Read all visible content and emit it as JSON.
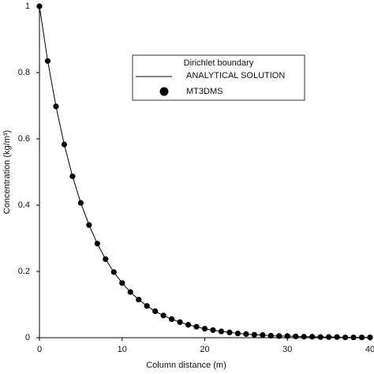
{
  "chart_data": {
    "type": "line",
    "xlabel": "Column distance (m)",
    "ylabel": "Concentration (kg/m³)",
    "legend_title": "Dirichlet boundary",
    "x": [
      0,
      1,
      2,
      3,
      4,
      5,
      6,
      7,
      8,
      9,
      10,
      11,
      12,
      13,
      14,
      15,
      16,
      17,
      18,
      19,
      20,
      21,
      22,
      23,
      24,
      25,
      26,
      27,
      28,
      29,
      30,
      31,
      32,
      33,
      34,
      35,
      36,
      37,
      38,
      39,
      40
    ],
    "series": [
      {
        "name": "ANALYTICAL SOLUTION",
        "color": "#000000",
        "style": "line",
        "values": [
          1,
          0.835,
          0.698,
          0.583,
          0.487,
          0.407,
          0.34,
          0.284,
          0.237,
          0.198,
          0.165,
          0.138,
          0.115,
          0.096,
          0.08,
          0.067,
          0.056,
          0.047,
          0.039,
          0.033,
          0.027,
          0.023,
          0.019,
          0.016,
          0.013,
          0.011,
          0.009,
          0.008,
          0.006,
          0.005,
          0.005,
          0.004,
          0.003,
          0.003,
          0.002,
          0.002,
          0.002,
          0.001,
          0.001,
          0.001,
          0.001
        ]
      },
      {
        "name": "MT3DMS",
        "color": "#000000",
        "style": "markers",
        "values": [
          1,
          0.835,
          0.698,
          0.583,
          0.487,
          0.407,
          0.34,
          0.284,
          0.237,
          0.198,
          0.165,
          0.138,
          0.115,
          0.096,
          0.08,
          0.067,
          0.056,
          0.047,
          0.039,
          0.033,
          0.027,
          0.023,
          0.019,
          0.016,
          0.013,
          0.011,
          0.009,
          0.008,
          0.006,
          0.005,
          0.005,
          0.004,
          0.003,
          0.003,
          0.002,
          0.002,
          0.002,
          0.001,
          0.001,
          0.001,
          0.001
        ]
      }
    ],
    "xlim": [
      0,
      40
    ],
    "xticks": [
      0,
      10,
      20,
      30,
      40
    ],
    "ylim": [
      0,
      1
    ],
    "yticks": [
      0,
      0.2,
      0.4,
      0.6,
      0.8,
      1
    ]
  }
}
